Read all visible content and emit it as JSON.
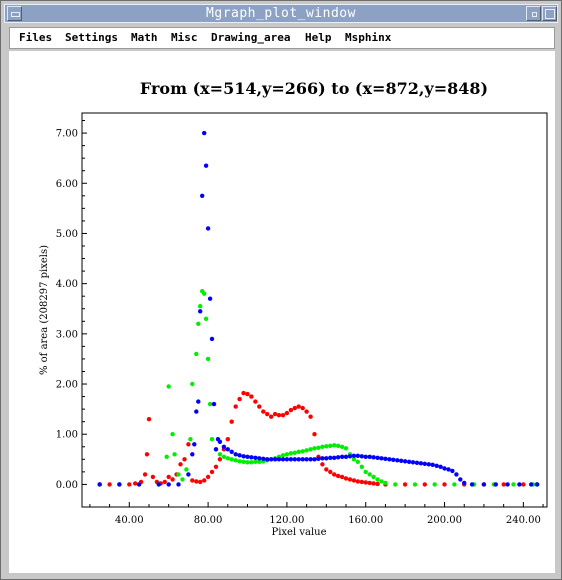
{
  "window": {
    "title": "Mgraph_plot_window",
    "title_bar_color": "#8da1c4"
  },
  "menu": {
    "items": [
      "Files",
      "Settings",
      "Math",
      "Misc",
      "Drawing_area",
      "Help",
      "Msphinx"
    ]
  },
  "chart_data": {
    "type": "scatter",
    "title": "From (x=514,y=266) to (x=872,y=848)",
    "xlabel": "Pixel value",
    "ylabel": "% of area (208297 pixels)",
    "xlim": [
      16,
      252
    ],
    "ylim": [
      -0.45,
      7.4
    ],
    "x_ticks": [
      40,
      80,
      120,
      160,
      200,
      240
    ],
    "x_tick_labels": [
      "40.00",
      "80.00",
      "120.00",
      "160.00",
      "200.00",
      "240.00"
    ],
    "y_ticks": [
      0,
      1,
      2,
      3,
      4,
      5,
      6,
      7
    ],
    "y_tick_labels": [
      "0.00",
      "1.00",
      "2.00",
      "3.00",
      "4.00",
      "5.00",
      "6.00",
      "7.00"
    ],
    "grid": false,
    "legend": "none",
    "series": [
      {
        "color": "#ff0000",
        "points": [
          [
            25,
            0
          ],
          [
            30,
            0
          ],
          [
            35,
            0
          ],
          [
            40,
            0
          ],
          [
            43,
            0.02
          ],
          [
            46,
            0.05
          ],
          [
            48,
            0.2
          ],
          [
            49,
            0.6
          ],
          [
            50,
            1.3
          ],
          [
            52,
            0.15
          ],
          [
            54,
            0.05
          ],
          [
            56,
            0.02
          ],
          [
            58,
            0.05
          ],
          [
            60,
            0.15
          ],
          [
            62,
            0.1
          ],
          [
            64,
            0.2
          ],
          [
            66,
            0.4
          ],
          [
            68,
            0.5
          ],
          [
            70,
            0.8
          ],
          [
            72,
            0.08
          ],
          [
            74,
            0.06
          ],
          [
            76,
            0.05
          ],
          [
            78,
            0.08
          ],
          [
            80,
            0.15
          ],
          [
            82,
            0.25
          ],
          [
            84,
            0.35
          ],
          [
            86,
            0.5
          ],
          [
            88,
            0.7
          ],
          [
            90,
            0.9
          ],
          [
            92,
            1.25
          ],
          [
            94,
            1.55
          ],
          [
            96,
            1.7
          ],
          [
            98,
            1.82
          ],
          [
            100,
            1.8
          ],
          [
            102,
            1.75
          ],
          [
            104,
            1.65
          ],
          [
            106,
            1.55
          ],
          [
            108,
            1.45
          ],
          [
            110,
            1.4
          ],
          [
            112,
            1.35
          ],
          [
            114,
            1.4
          ],
          [
            116,
            1.38
          ],
          [
            118,
            1.38
          ],
          [
            120,
            1.42
          ],
          [
            122,
            1.48
          ],
          [
            124,
            1.52
          ],
          [
            126,
            1.55
          ],
          [
            128,
            1.52
          ],
          [
            130,
            1.45
          ],
          [
            132,
            1.35
          ],
          [
            134,
            1.0
          ],
          [
            136,
            0.55
          ],
          [
            138,
            0.4
          ],
          [
            140,
            0.3
          ],
          [
            142,
            0.25
          ],
          [
            144,
            0.2
          ],
          [
            146,
            0.17
          ],
          [
            148,
            0.15
          ],
          [
            150,
            0.12
          ],
          [
            152,
            0.1
          ],
          [
            154,
            0.08
          ],
          [
            156,
            0.06
          ],
          [
            158,
            0.05
          ],
          [
            160,
            0.04
          ],
          [
            162,
            0.03
          ],
          [
            164,
            0.02
          ],
          [
            166,
            0.01
          ],
          [
            170,
            0
          ],
          [
            180,
            0
          ],
          [
            190,
            0
          ],
          [
            200,
            0
          ],
          [
            210,
            0
          ],
          [
            220,
            0
          ],
          [
            230,
            0
          ],
          [
            240,
            0
          ],
          [
            247,
            0
          ]
        ]
      },
      {
        "color": "#00ee00",
        "points": [
          [
            25,
            0
          ],
          [
            35,
            0
          ],
          [
            45,
            0
          ],
          [
            55,
            0
          ],
          [
            59,
            0.55
          ],
          [
            60,
            1.95
          ],
          [
            62,
            1.0
          ],
          [
            63,
            0.6
          ],
          [
            65,
            0.2
          ],
          [
            67,
            0.1
          ],
          [
            69,
            0.3
          ],
          [
            71,
            0.9
          ],
          [
            72,
            2.0
          ],
          [
            74,
            2.6
          ],
          [
            75,
            3.2
          ],
          [
            76,
            3.55
          ],
          [
            77,
            3.85
          ],
          [
            78,
            3.8
          ],
          [
            79,
            3.3
          ],
          [
            80,
            2.5
          ],
          [
            81,
            1.6
          ],
          [
            82,
            0.9
          ],
          [
            84,
            0.7
          ],
          [
            86,
            0.6
          ],
          [
            88,
            0.55
          ],
          [
            90,
            0.52
          ],
          [
            92,
            0.5
          ],
          [
            94,
            0.48
          ],
          [
            96,
            0.46
          ],
          [
            98,
            0.45
          ],
          [
            100,
            0.44
          ],
          [
            102,
            0.44
          ],
          [
            104,
            0.45
          ],
          [
            106,
            0.45
          ],
          [
            108,
            0.46
          ],
          [
            110,
            0.48
          ],
          [
            112,
            0.5
          ],
          [
            114,
            0.52
          ],
          [
            116,
            0.55
          ],
          [
            118,
            0.58
          ],
          [
            120,
            0.6
          ],
          [
            122,
            0.62
          ],
          [
            124,
            0.63
          ],
          [
            126,
            0.65
          ],
          [
            128,
            0.66
          ],
          [
            130,
            0.68
          ],
          [
            132,
            0.7
          ],
          [
            134,
            0.72
          ],
          [
            136,
            0.73
          ],
          [
            138,
            0.75
          ],
          [
            140,
            0.76
          ],
          [
            142,
            0.77
          ],
          [
            144,
            0.78
          ],
          [
            146,
            0.77
          ],
          [
            148,
            0.75
          ],
          [
            150,
            0.72
          ],
          [
            152,
            0.6
          ],
          [
            154,
            0.5
          ],
          [
            156,
            0.45
          ],
          [
            158,
            0.35
          ],
          [
            160,
            0.25
          ],
          [
            162,
            0.2
          ],
          [
            164,
            0.15
          ],
          [
            166,
            0.1
          ],
          [
            168,
            0.06
          ],
          [
            170,
            0.03
          ],
          [
            175,
            0
          ],
          [
            185,
            0
          ],
          [
            195,
            0
          ],
          [
            205,
            0
          ],
          [
            215,
            0
          ],
          [
            225,
            0
          ],
          [
            235,
            0
          ],
          [
            245,
            0
          ],
          [
            247,
            0
          ]
        ]
      },
      {
        "color": "#0000ff",
        "points": [
          [
            25,
            0
          ],
          [
            35,
            0
          ],
          [
            45,
            0
          ],
          [
            55,
            0
          ],
          [
            60,
            0
          ],
          [
            65,
            0
          ],
          [
            70,
            0.2
          ],
          [
            72,
            0.6
          ],
          [
            73,
            0.8
          ],
          [
            74,
            1.45
          ],
          [
            75,
            1.65
          ],
          [
            76,
            3.45
          ],
          [
            77,
            5.75
          ],
          [
            78,
            7.0
          ],
          [
            79,
            6.35
          ],
          [
            80,
            5.1
          ],
          [
            81,
            3.7
          ],
          [
            82,
            2.9
          ],
          [
            83,
            1.6
          ],
          [
            84,
            0.7
          ],
          [
            85,
            0.9
          ],
          [
            86,
            0.85
          ],
          [
            88,
            0.75
          ],
          [
            90,
            0.7
          ],
          [
            92,
            0.65
          ],
          [
            94,
            0.6
          ],
          [
            96,
            0.58
          ],
          [
            98,
            0.56
          ],
          [
            100,
            0.55
          ],
          [
            102,
            0.54
          ],
          [
            104,
            0.53
          ],
          [
            106,
            0.52
          ],
          [
            108,
            0.51
          ],
          [
            110,
            0.5
          ],
          [
            112,
            0.5
          ],
          [
            114,
            0.5
          ],
          [
            116,
            0.5
          ],
          [
            118,
            0.5
          ],
          [
            120,
            0.5
          ],
          [
            122,
            0.5
          ],
          [
            124,
            0.5
          ],
          [
            126,
            0.5
          ],
          [
            128,
            0.5
          ],
          [
            130,
            0.5
          ],
          [
            132,
            0.5
          ],
          [
            134,
            0.5
          ],
          [
            136,
            0.51
          ],
          [
            138,
            0.52
          ],
          [
            140,
            0.52
          ],
          [
            142,
            0.53
          ],
          [
            144,
            0.53
          ],
          [
            146,
            0.54
          ],
          [
            148,
            0.55
          ],
          [
            150,
            0.55
          ],
          [
            152,
            0.56
          ],
          [
            154,
            0.57
          ],
          [
            156,
            0.57
          ],
          [
            158,
            0.56
          ],
          [
            160,
            0.55
          ],
          [
            162,
            0.55
          ],
          [
            164,
            0.54
          ],
          [
            166,
            0.53
          ],
          [
            168,
            0.52
          ],
          [
            170,
            0.51
          ],
          [
            172,
            0.5
          ],
          [
            174,
            0.49
          ],
          [
            176,
            0.48
          ],
          [
            178,
            0.47
          ],
          [
            180,
            0.46
          ],
          [
            182,
            0.45
          ],
          [
            184,
            0.44
          ],
          [
            186,
            0.43
          ],
          [
            188,
            0.42
          ],
          [
            190,
            0.41
          ],
          [
            192,
            0.4
          ],
          [
            194,
            0.39
          ],
          [
            196,
            0.37
          ],
          [
            198,
            0.35
          ],
          [
            200,
            0.32
          ],
          [
            202,
            0.3
          ],
          [
            204,
            0.27
          ],
          [
            206,
            0.2
          ],
          [
            208,
            0.1
          ],
          [
            210,
            0.03
          ],
          [
            214,
            0
          ],
          [
            220,
            0
          ],
          [
            226,
            0
          ],
          [
            232,
            0
          ],
          [
            238,
            0
          ],
          [
            244,
            0
          ],
          [
            247,
            0
          ]
        ]
      }
    ]
  }
}
